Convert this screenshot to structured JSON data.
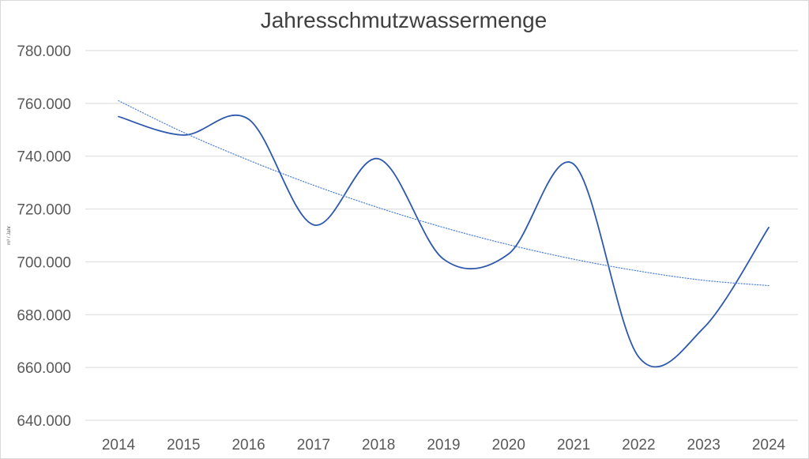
{
  "chart_data": {
    "type": "line",
    "title": "Jahresschmutzwassermenge",
    "xlabel": "",
    "ylabel": "m³ / Jahr",
    "categories": [
      "2014",
      "2015",
      "2016",
      "2017",
      "2018",
      "2019",
      "2020",
      "2021",
      "2022",
      "2023",
      "2024"
    ],
    "series": [
      {
        "values": [
          755000,
          748000,
          754000,
          714000,
          739000,
          701000,
          703000,
          737000,
          664000,
          675000,
          713000
        ],
        "color": "#2e58ad",
        "style": "solid"
      },
      {
        "values": [
          761000,
          749000,
          738500,
          729000,
          720500,
          713000,
          706500,
          701000,
          696500,
          693000,
          691000
        ],
        "color": "#4a7fd6",
        "style": "dotted",
        "kind": "trendline"
      }
    ],
    "ylim": [
      640000,
      780000
    ],
    "yticks": [
      "640.000",
      "660.000",
      "680.000",
      "700.000",
      "720.000",
      "740.000",
      "760.000",
      "780.000"
    ],
    "grid": true,
    "legend": "none"
  }
}
